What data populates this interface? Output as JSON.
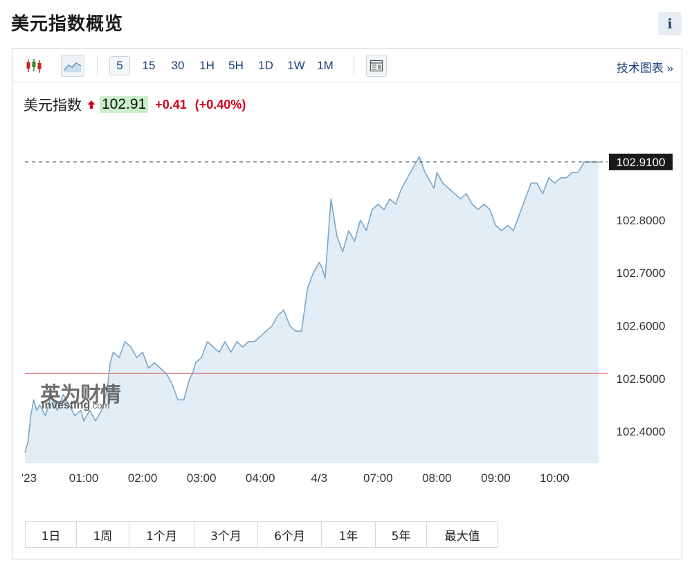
{
  "page": {
    "title": "美元指数概览",
    "info_label": "i"
  },
  "toolbar": {
    "intervals": [
      "5",
      "15",
      "30",
      "1H",
      "5H",
      "1D",
      "1W",
      "1M"
    ],
    "active_interval": "5",
    "tech_chart_label": "技术图表 »",
    "icons": [
      "candlestick-icon",
      "area-chart-icon",
      "layout-icon"
    ]
  },
  "quote": {
    "name": "美元指数",
    "price": "102.91",
    "change": "+0.41",
    "change_pct": "(+0.40%)",
    "up_color": "#d0021b",
    "price_bg": "#c9f0c9"
  },
  "watermark": {
    "cn": "英为财情",
    "en": "Investing",
    "en_suffix": ".com"
  },
  "range_buttons": [
    "1日",
    "1周",
    "1个月",
    "3个月",
    "6个月",
    "1年",
    "5年",
    "最大值"
  ],
  "chart_data": {
    "type": "area",
    "title": "",
    "xlabel": "",
    "ylabel": "",
    "ylim": [
      102.34,
      102.94
    ],
    "y_ticks": [
      "102.4000",
      "102.5000",
      "102.6000",
      "102.7000",
      "102.8000"
    ],
    "x_ticks": [
      {
        "label": "'23",
        "x": 0.07
      },
      {
        "label": "01:00",
        "x": 1.0
      },
      {
        "label": "02:00",
        "x": 2.0
      },
      {
        "label": "03:00",
        "x": 3.0
      },
      {
        "label": "04:00",
        "x": 4.0
      },
      {
        "label": "4/3",
        "x": 5.0
      },
      {
        "label": "07:00",
        "x": 6.0
      },
      {
        "label": "08:00",
        "x": 7.0
      },
      {
        "label": "09:00",
        "x": 8.0
      },
      {
        "label": "10:00",
        "x": 9.0
      }
    ],
    "last_price_label": "102.9100",
    "last_price": 102.91,
    "previous_close": 102.51,
    "line_color": "#7aa6c8",
    "fill_color": "#e3edf6",
    "prev_close_color": "#e06666",
    "grid": false,
    "series": [
      {
        "x": [
          0.0,
          0.05,
          0.1,
          0.15,
          0.2,
          0.25,
          0.35,
          0.45,
          0.55,
          0.65,
          0.75,
          0.85,
          0.95,
          1.0,
          1.1,
          1.2,
          1.3,
          1.4,
          1.45,
          1.5,
          1.6,
          1.7,
          1.8,
          1.9,
          2.0,
          2.1,
          2.2,
          2.3,
          2.4,
          2.5,
          2.6,
          2.7,
          2.8,
          2.85,
          2.9,
          3.0,
          3.1,
          3.2,
          3.3,
          3.4,
          3.5,
          3.6,
          3.7,
          3.8,
          3.9,
          4.0,
          4.1,
          4.2,
          4.3,
          4.4,
          4.5,
          4.6,
          4.7,
          4.8,
          4.9,
          5.0,
          5.05,
          5.1,
          5.2,
          5.3,
          5.4,
          5.5,
          5.6,
          5.7,
          5.8,
          5.9,
          6.0,
          6.1,
          6.2,
          6.3,
          6.4,
          6.5,
          6.6,
          6.7,
          6.8,
          6.9,
          6.95,
          7.0,
          7.1,
          7.2,
          7.3,
          7.4,
          7.5,
          7.6,
          7.7,
          7.8,
          7.9,
          8.0,
          8.1,
          8.2,
          8.3,
          8.4,
          8.5,
          8.6,
          8.7,
          8.8,
          8.9,
          9.0,
          9.1,
          9.2,
          9.3,
          9.4,
          9.5,
          9.6,
          9.75
        ],
        "y": [
          102.36,
          102.38,
          102.43,
          102.46,
          102.44,
          102.45,
          102.43,
          102.47,
          102.44,
          102.47,
          102.45,
          102.43,
          102.44,
          102.42,
          102.44,
          102.42,
          102.44,
          102.48,
          102.53,
          102.55,
          102.54,
          102.57,
          102.56,
          102.54,
          102.55,
          102.52,
          102.53,
          102.52,
          102.51,
          102.49,
          102.46,
          102.46,
          102.5,
          102.51,
          102.53,
          102.54,
          102.57,
          102.56,
          102.55,
          102.57,
          102.55,
          102.57,
          102.56,
          102.57,
          102.57,
          102.58,
          102.59,
          102.6,
          102.62,
          102.63,
          102.6,
          102.59,
          102.59,
          102.67,
          102.7,
          102.72,
          102.71,
          102.69,
          102.84,
          102.77,
          102.74,
          102.78,
          102.76,
          102.8,
          102.78,
          102.82,
          102.83,
          102.82,
          102.84,
          102.83,
          102.86,
          102.88,
          102.9,
          102.92,
          102.89,
          102.87,
          102.86,
          102.89,
          102.87,
          102.86,
          102.85,
          102.84,
          102.85,
          102.83,
          102.82,
          102.83,
          102.82,
          102.79,
          102.78,
          102.79,
          102.78,
          102.81,
          102.84,
          102.87,
          102.87,
          102.85,
          102.88,
          102.87,
          102.88,
          102.88,
          102.89,
          102.89,
          102.91,
          102.91,
          102.91
        ]
      }
    ]
  }
}
